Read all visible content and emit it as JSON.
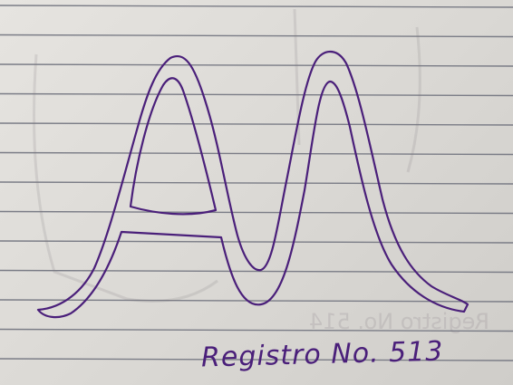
{
  "photo": {
    "subject": "hand-drawn-outline-letters",
    "caption": "Registro No. 513",
    "ink_color": "#4a1f7a",
    "paper_line_color": "#7a7c86",
    "margin_line_color": "#b8a7a3",
    "show_through_text": "Registro No. 514"
  }
}
